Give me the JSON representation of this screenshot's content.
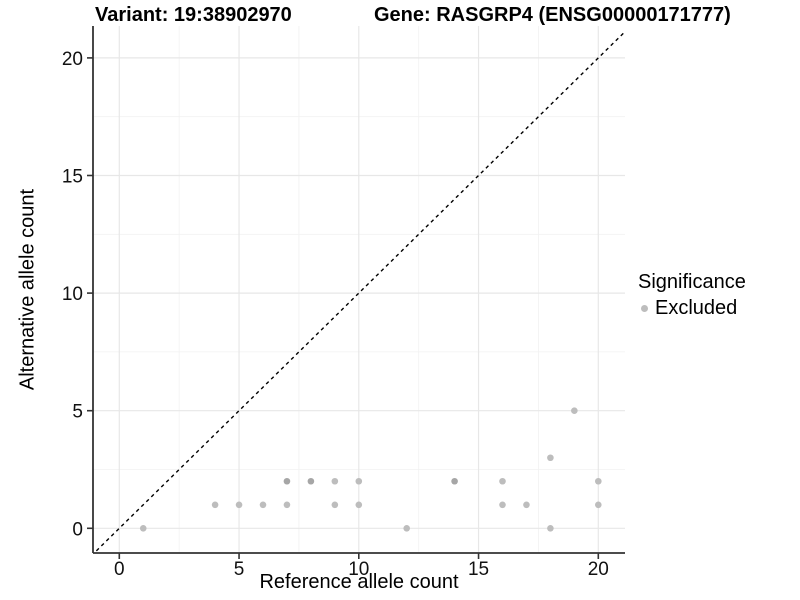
{
  "chart_data": {
    "type": "scatter",
    "titles": {
      "variant": "Variant: 19:38902970",
      "gene": "Gene: RASGRP4 (ENSG00000171777)"
    },
    "xlabel": "Reference allele count",
    "ylabel": "Alternative allele count",
    "xlim": [
      -1.1,
      21.1
    ],
    "ylim": [
      -1.05,
      21.35
    ],
    "x_ticks": [
      0,
      5,
      10,
      15,
      20
    ],
    "y_ticks": [
      0,
      5,
      10,
      15,
      20
    ],
    "x_minor_breaks": [
      2.5,
      7.5,
      12.5,
      17.5
    ],
    "y_minor_breaks": [
      2.5,
      7.5,
      12.5,
      17.5
    ],
    "grid": true,
    "identity_line": {
      "equation": "y = x",
      "style": "dashed",
      "color": "#000000"
    },
    "series": [
      {
        "name": "Excluded",
        "color": "#bdbdbd",
        "points": [
          {
            "x": 1,
            "y": 0
          },
          {
            "x": 4,
            "y": 1
          },
          {
            "x": 5,
            "y": 1
          },
          {
            "x": 6,
            "y": 1
          },
          {
            "x": 7,
            "y": 1
          },
          {
            "x": 7,
            "y": 2,
            "dark": true
          },
          {
            "x": 8,
            "y": 2,
            "dark": true
          },
          {
            "x": 9,
            "y": 1
          },
          {
            "x": 9,
            "y": 2
          },
          {
            "x": 10,
            "y": 1
          },
          {
            "x": 10,
            "y": 2
          },
          {
            "x": 12,
            "y": 0
          },
          {
            "x": 14,
            "y": 2,
            "dark": true
          },
          {
            "x": 16,
            "y": 1
          },
          {
            "x": 16,
            "y": 2
          },
          {
            "x": 17,
            "y": 1
          },
          {
            "x": 18,
            "y": 0
          },
          {
            "x": 18,
            "y": 3
          },
          {
            "x": 19,
            "y": 5
          },
          {
            "x": 20,
            "y": 1
          },
          {
            "x": 20,
            "y": 2
          }
        ]
      }
    ],
    "legend": {
      "title": "Significance",
      "position": "right",
      "entries": [
        {
          "label": "Excluded",
          "color": "#bdbdbd"
        }
      ]
    }
  },
  "colors": {
    "point": "#bdbdbd",
    "point_dark": "#a6a6a6",
    "grid_major": "#e7e7e7",
    "grid_minor": "#f2f2f2",
    "axis_line": "#333333",
    "tick_mark": "#333333",
    "tick_label": "#111111",
    "identity_line": "#000000",
    "background": "#ffffff"
  }
}
